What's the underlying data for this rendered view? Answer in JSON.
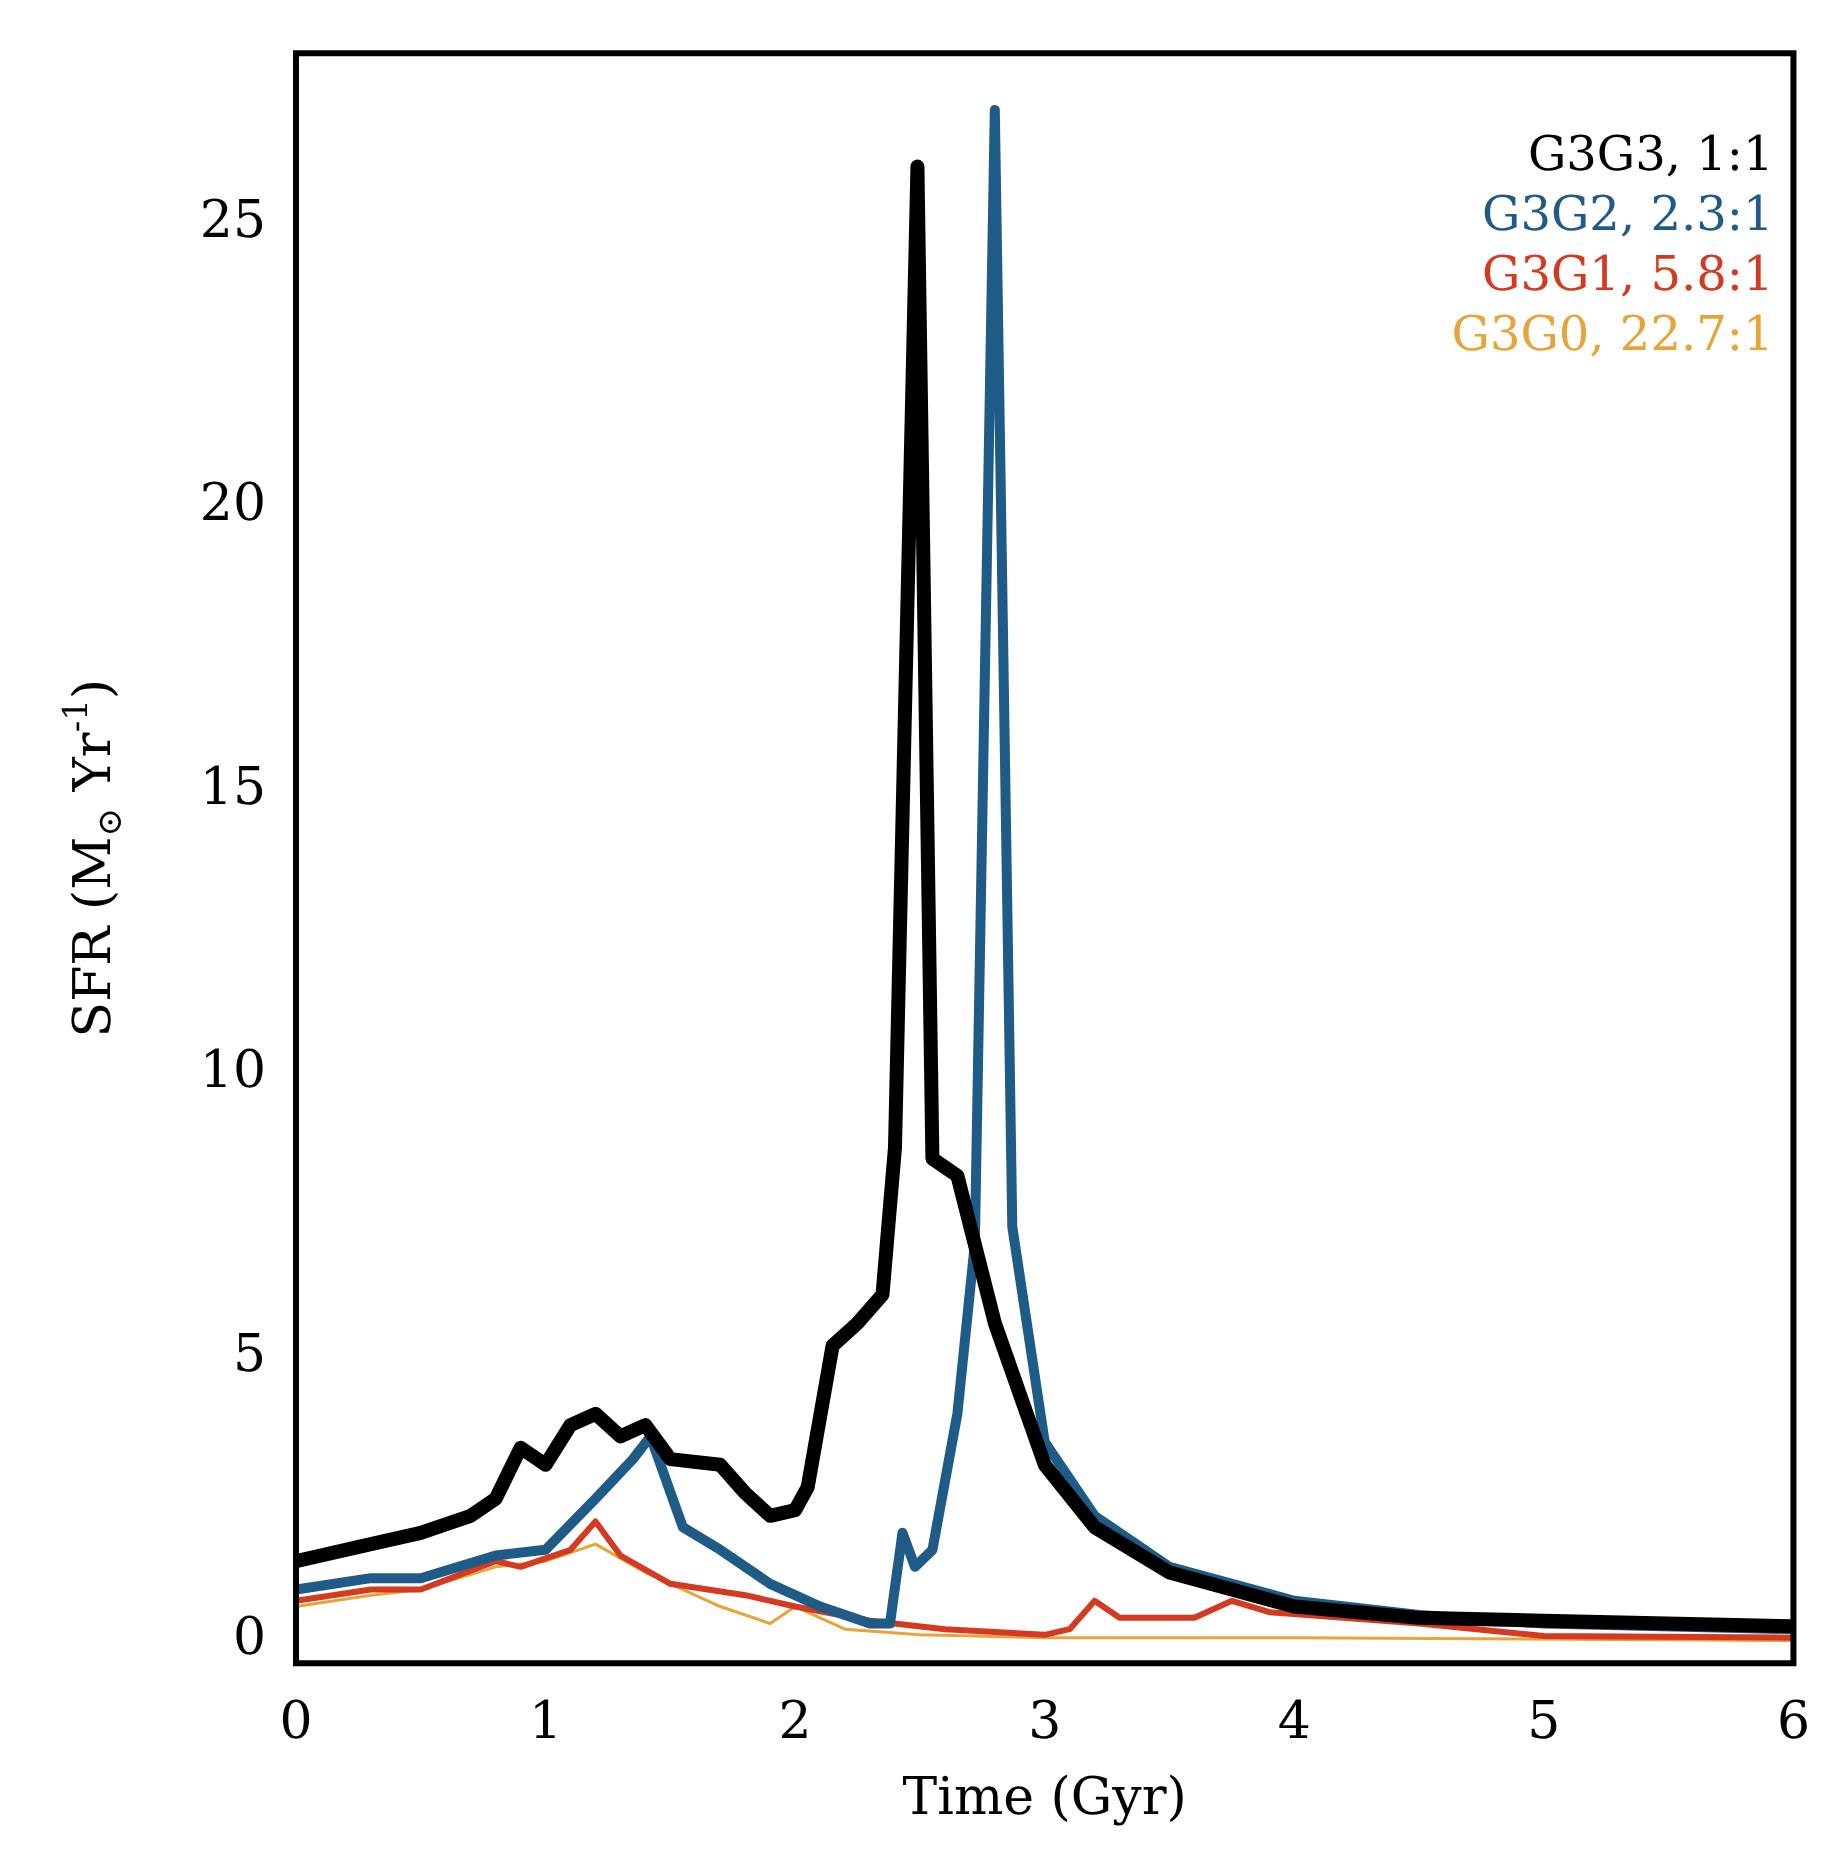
{
  "chart_data": {
    "type": "line",
    "xlabel": "Time (Gyr)",
    "ylabel": "SFR (M$_{⊙}$ Yr$^{-1}$)",
    "xlim": [
      0,
      6
    ],
    "ylim": [
      -0.4,
      28
    ],
    "xticks": [
      0,
      1,
      2,
      3,
      4,
      5,
      6
    ],
    "yticks": [
      0,
      5,
      10,
      15,
      20,
      25
    ],
    "grid": false,
    "legend": "top right",
    "marker": "none",
    "line_style": "solid",
    "series": [
      {
        "name": "G3G3, 1:1",
        "color": "#000000",
        "x": [
          0,
          0.3,
          0.5,
          0.7,
          0.8,
          0.9,
          1.0,
          1.1,
          1.2,
          1.3,
          1.4,
          1.5,
          1.7,
          1.8,
          1.9,
          2.0,
          2.05,
          2.15,
          2.25,
          2.35,
          2.4,
          2.49,
          2.55,
          2.65,
          2.8,
          3.0,
          3.2,
          3.5,
          4.0,
          4.5,
          5.0,
          6.0
        ],
        "values": [
          1.4,
          1.7,
          1.9,
          2.2,
          2.5,
          3.4,
          3.1,
          3.8,
          4.0,
          3.6,
          3.8,
          3.2,
          3.1,
          2.6,
          2.2,
          2.3,
          2.7,
          5.2,
          5.6,
          6.1,
          8.7,
          26,
          8.5,
          8.2,
          5.6,
          3.1,
          2.0,
          1.2,
          0.6,
          0.4,
          0.35,
          0.25
        ]
      },
      {
        "name": "G3G2, 2.3:1",
        "color": "#1f5b87",
        "x": [
          0,
          0.3,
          0.5,
          0.8,
          1.0,
          1.2,
          1.35,
          1.42,
          1.55,
          1.7,
          1.9,
          2.1,
          2.3,
          2.38,
          2.43,
          2.48,
          2.55,
          2.65,
          2.72,
          2.8,
          2.87,
          3.0,
          3.2,
          3.5,
          4.0,
          4.5,
          5.0,
          6.0
        ],
        "values": [
          0.9,
          1.1,
          1.1,
          1.5,
          1.6,
          2.5,
          3.2,
          3.6,
          2.0,
          1.6,
          1.0,
          0.6,
          0.3,
          0.3,
          1.9,
          1.3,
          1.6,
          4.0,
          7.0,
          27,
          7.3,
          3.5,
          2.2,
          1.3,
          0.7,
          0.45,
          0.3,
          0.2
        ]
      },
      {
        "name": "G3G1, 5.8:1",
        "color": "#d43a1f",
        "x": [
          0,
          0.3,
          0.5,
          0.8,
          0.9,
          1.1,
          1.2,
          1.3,
          1.5,
          1.8,
          2.0,
          2.3,
          2.6,
          3.0,
          3.1,
          3.2,
          3.3,
          3.6,
          3.75,
          3.9,
          4.5,
          5.0,
          6.0
        ],
        "values": [
          0.7,
          0.9,
          0.9,
          1.4,
          1.3,
          1.6,
          2.1,
          1.5,
          1.0,
          0.8,
          0.6,
          0.35,
          0.2,
          0.1,
          0.2,
          0.7,
          0.4,
          0.4,
          0.7,
          0.5,
          0.3,
          0.08,
          0.05
        ]
      },
      {
        "name": "G3G0, 22.7:1",
        "color": "#e8a33a",
        "x": [
          0,
          0.3,
          0.5,
          0.8,
          1.0,
          1.2,
          1.4,
          1.7,
          1.9,
          2.0,
          2.2,
          2.5,
          3.0,
          4.0,
          6.0
        ],
        "values": [
          0.6,
          0.8,
          0.9,
          1.3,
          1.4,
          1.7,
          1.2,
          0.6,
          0.3,
          0.6,
          0.2,
          0.1,
          0.05,
          0.05,
          0.0
        ]
      }
    ]
  }
}
